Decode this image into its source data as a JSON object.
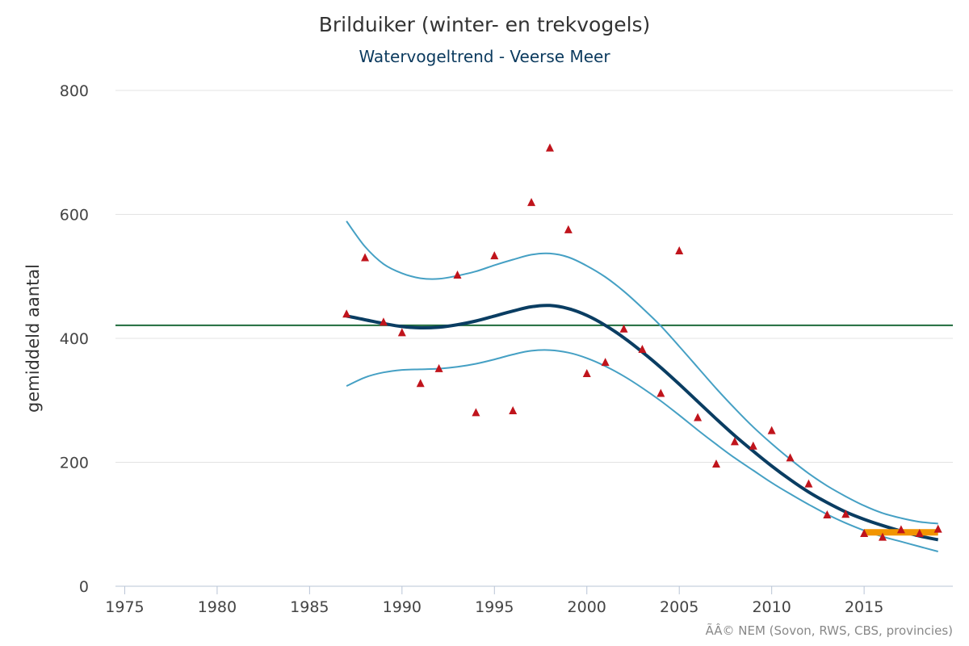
{
  "chart_data": {
    "type": "line",
    "title": "Brilduiker (winter- en trekvogels)",
    "subtitle": "Watervogeltrend - Veerse Meer",
    "xlabel": "",
    "ylabel": "gemiddeld aantal",
    "xlim": [
      1974.5,
      2019.8
    ],
    "ylim": [
      0,
      800
    ],
    "xticks": [
      1975,
      1980,
      1985,
      1990,
      1995,
      2000,
      2005,
      2010,
      2015
    ],
    "yticks": [
      0,
      200,
      400,
      600,
      800
    ],
    "grid": true,
    "legend": "none",
    "reference_line": {
      "y": 421,
      "color": "#1e6b3c"
    },
    "trend": {
      "color": "#0a3d62",
      "x": [
        1987,
        1988,
        1989,
        1990,
        1991,
        1992,
        1993,
        1994,
        1995,
        1996,
        1997,
        1998,
        1999,
        2000,
        2001,
        2002,
        2003,
        2004,
        2005,
        2006,
        2007,
        2008,
        2009,
        2010,
        2011,
        2012,
        2013,
        2014,
        2015,
        2016,
        2017,
        2018,
        2019
      ],
      "y": [
        436,
        430,
        424,
        419,
        417,
        418,
        422,
        428,
        436,
        444,
        451,
        453,
        448,
        437,
        421,
        401,
        378,
        353,
        326,
        298,
        270,
        243,
        218,
        194,
        172,
        152,
        135,
        120,
        108,
        98,
        89,
        81,
        75
      ]
    },
    "upper_bound": {
      "color": "#45a0c4",
      "x": [
        1987,
        1988,
        1989,
        1990,
        1991,
        1992,
        1993,
        1994,
        1995,
        1996,
        1997,
        1998,
        1999,
        2000,
        2001,
        2002,
        2003,
        2004,
        2005,
        2006,
        2007,
        2008,
        2009,
        2010,
        2011,
        2012,
        2013,
        2014,
        2015,
        2016,
        2017,
        2018,
        2019
      ],
      "y": [
        589,
        548,
        520,
        505,
        497,
        496,
        501,
        508,
        518,
        527,
        535,
        537,
        531,
        517,
        499,
        476,
        449,
        420,
        387,
        353,
        319,
        287,
        257,
        230,
        205,
        182,
        162,
        145,
        130,
        118,
        110,
        104,
        101
      ]
    },
    "lower_bound": {
      "color": "#45a0c4",
      "x": [
        1987,
        1988,
        1989,
        1990,
        1991,
        1992,
        1993,
        1994,
        1995,
        1996,
        1997,
        1998,
        1999,
        2000,
        2001,
        2002,
        2003,
        2004,
        2005,
        2006,
        2007,
        2008,
        2009,
        2010,
        2011,
        2012,
        2013,
        2014,
        2015,
        2016,
        2017,
        2018,
        2019
      ],
      "y": [
        323,
        337,
        345,
        349,
        350,
        351,
        354,
        359,
        366,
        374,
        380,
        381,
        377,
        368,
        355,
        339,
        320,
        299,
        276,
        252,
        229,
        207,
        187,
        167,
        149,
        132,
        116,
        102,
        90,
        80,
        72,
        64,
        56
      ]
    },
    "observations": {
      "color": "#c0141c",
      "x": [
        1987,
        1988,
        1989,
        1990,
        1991,
        1992,
        1993,
        1994,
        1995,
        1996,
        1997,
        1998,
        1999,
        2000,
        2001,
        2002,
        2003,
        2004,
        2005,
        2006,
        2007,
        2008,
        2009,
        2010,
        2011,
        2012,
        2013,
        2014,
        2015,
        2016,
        2017,
        2018,
        2019
      ],
      "y": [
        440,
        531,
        427,
        410,
        328,
        352,
        503,
        281,
        534,
        284,
        620,
        708,
        576,
        344,
        362,
        416,
        383,
        312,
        542,
        273,
        198,
        234,
        227,
        252,
        208,
        166,
        116,
        117,
        86,
        80,
        92,
        86,
        93
      ]
    },
    "recent_mean": {
      "x_start": 2015,
      "x_end": 2019,
      "y": 87,
      "color": "#f29400"
    }
  },
  "credit": "ÃÂ© NEM (Sovon, RWS, CBS, provincies)"
}
